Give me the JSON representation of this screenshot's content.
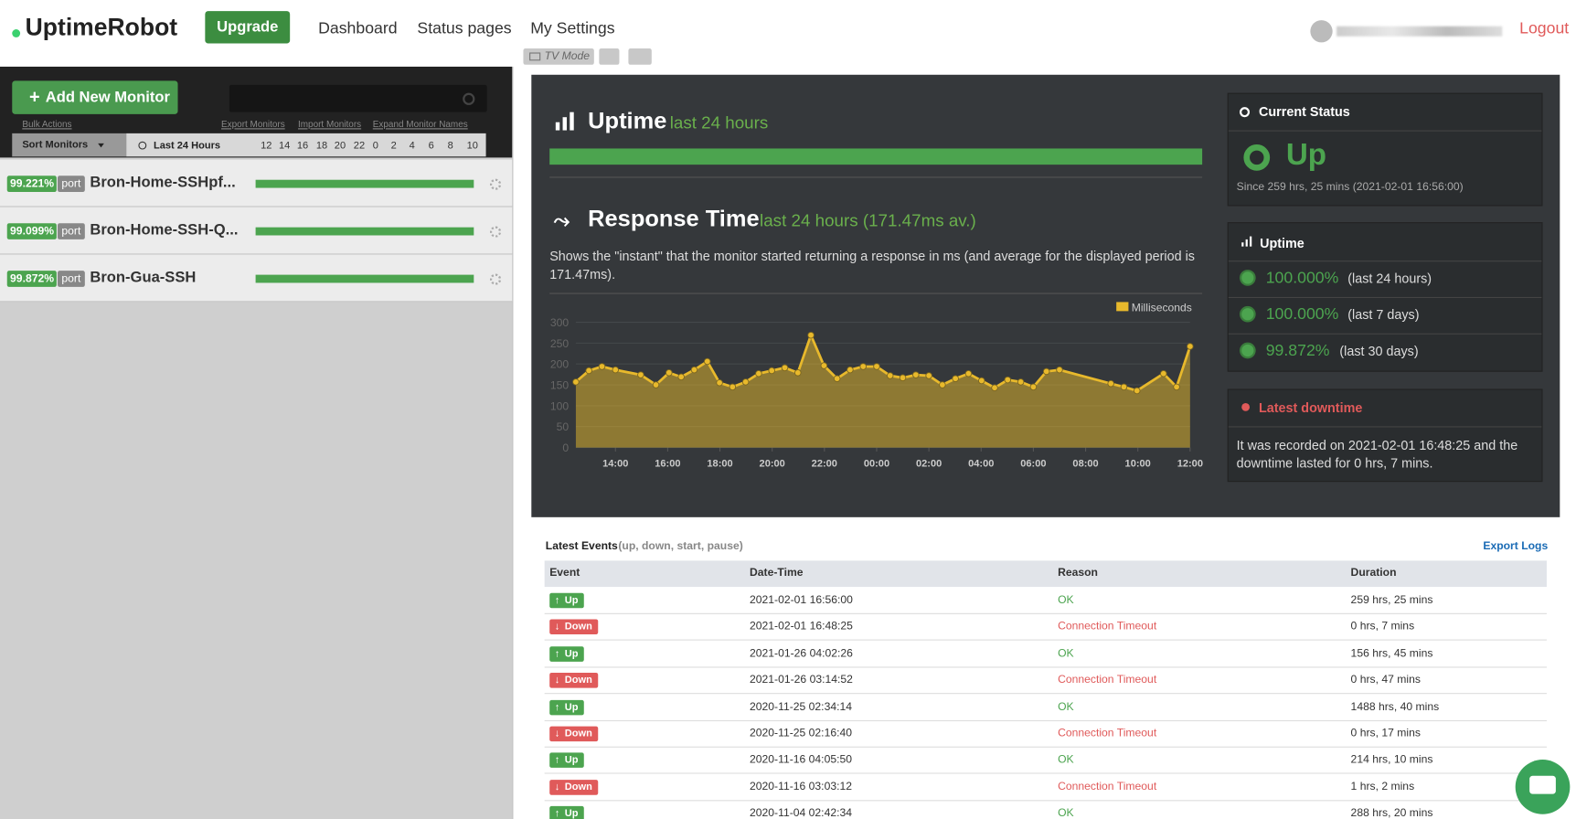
{
  "header": {
    "logo": "UptimeRobot",
    "upgrade": "Upgrade",
    "nav": [
      "Dashboard",
      "Status pages",
      "My Settings"
    ],
    "logout": "Logout",
    "tv_mode": "TV Mode"
  },
  "sidebar": {
    "add_button": "Add New Monitor",
    "links": [
      "Bulk Actions",
      "Export Monitors",
      "Import Monitors",
      "Expand Monitor Names"
    ],
    "sort": "Sort Monitors",
    "period": "Last 24 Hours",
    "hours": [
      "12",
      "14",
      "16",
      "18",
      "20",
      "22",
      "0",
      "2",
      "4",
      "6",
      "8",
      "10"
    ],
    "monitors": [
      {
        "uptime": "99.221%",
        "type": "port",
        "name": "Bron-Home-SSHpf..."
      },
      {
        "uptime": "99.099%",
        "type": "port",
        "name": "Bron-Home-SSH-Q..."
      },
      {
        "uptime": "99.872%",
        "type": "port",
        "name": "Bron-Gua-SSH"
      }
    ]
  },
  "uptime_panel": {
    "title": "Uptime",
    "period": "last 24 hours"
  },
  "response_panel": {
    "title": "Response Time",
    "period": "last 24 hours (171.47ms av.)",
    "description": "Shows the \"instant\" that the monitor started returning a response in ms (and average for the displayed period is 171.47ms).",
    "chart": {
      "type": "line",
      "series": [
        {
          "name": "Milliseconds",
          "color": "#e8b92c",
          "values": [
            157,
            184,
            194,
            186,
            174,
            150,
            179,
            169,
            186,
            206,
            155,
            145,
            157,
            177,
            184,
            191,
            179,
            269,
            196,
            165,
            186,
            194,
            194,
            172,
            167,
            174,
            172,
            150,
            165,
            177,
            160,
            143,
            162,
            157,
            145,
            182,
            186,
            153,
            145,
            136,
            177,
            145,
            242
          ]
        }
      ],
      "x": [
        "12:29",
        "12:59",
        "13:29",
        "14:00",
        "14:58",
        "15:33",
        "16:03",
        "16:31",
        "17:01",
        "17:31",
        "17:59",
        "18:29",
        "18:59",
        "19:29",
        "19:59",
        "20:29",
        "20:59",
        "21:29",
        "21:59",
        "22:29",
        "22:59",
        "23:29",
        "00:00",
        "00:31",
        "01:00",
        "01:30",
        "02:00",
        "02:31",
        "03:01",
        "03:31",
        "04:01",
        "04:31",
        "05:01",
        "05:31",
        "06:00",
        "06:30",
        "07:00",
        "08:58",
        "09:28",
        "09:58",
        "10:59",
        "11:29",
        "12:00"
      ],
      "xlim": [
        "12:29",
        "12:00"
      ],
      "xticks": [
        "14:00",
        "16:00",
        "18:00",
        "20:00",
        "22:00",
        "00:00",
        "02:00",
        "04:00",
        "06:00",
        "08:00",
        "10:00",
        "12:00"
      ],
      "ylim": [
        0,
        300
      ],
      "yticks": [
        0,
        50,
        100,
        150,
        200,
        250,
        300
      ],
      "grid": true
    }
  },
  "current_status": {
    "title": "Current Status",
    "status": "Up",
    "since": "Since 259 hrs, 25 mins (2021-02-01 16:56:00)"
  },
  "uptime_stats": {
    "title": "Uptime",
    "rows": [
      {
        "value": "100.000%",
        "period": "(last 24 hours)"
      },
      {
        "value": "100.000%",
        "period": "(last 7 days)"
      },
      {
        "value": "99.872%",
        "period": "(last 30 days)"
      }
    ]
  },
  "latest_downtime": {
    "title": "Latest downtime",
    "text": "It was recorded on 2021-02-01 16:48:25 and the downtime lasted for 0 hrs, 7 mins."
  },
  "events": {
    "title": "Latest Events",
    "filter": "(up, down, start, pause)",
    "export": "Export Logs",
    "columns": [
      "Event",
      "Date-Time",
      "Reason",
      "Duration"
    ],
    "rows": [
      [
        "Up",
        "2021-02-01 16:56:00",
        "OK",
        "259 hrs, 25 mins"
      ],
      [
        "Down",
        "2021-02-01 16:48:25",
        "Connection Timeout",
        "0 hrs, 7 mins"
      ],
      [
        "Up",
        "2021-01-26 04:02:26",
        "OK",
        "156 hrs, 45 mins"
      ],
      [
        "Down",
        "2021-01-26 03:14:52",
        "Connection Timeout",
        "0 hrs, 47 mins"
      ],
      [
        "Up",
        "2020-11-25 02:34:14",
        "OK",
        "1488 hrs, 40 mins"
      ],
      [
        "Down",
        "2020-11-25 02:16:40",
        "Connection Timeout",
        "0 hrs, 17 mins"
      ],
      [
        "Up",
        "2020-11-16 04:05:50",
        "OK",
        "214 hrs, 10 mins"
      ],
      [
        "Down",
        "2020-11-16 03:03:12",
        "Connection Timeout",
        "1 hrs, 2 mins"
      ],
      [
        "Up",
        "2020-11-04 02:42:34",
        "OK",
        "288 hrs, 20 mins"
      ]
    ]
  }
}
